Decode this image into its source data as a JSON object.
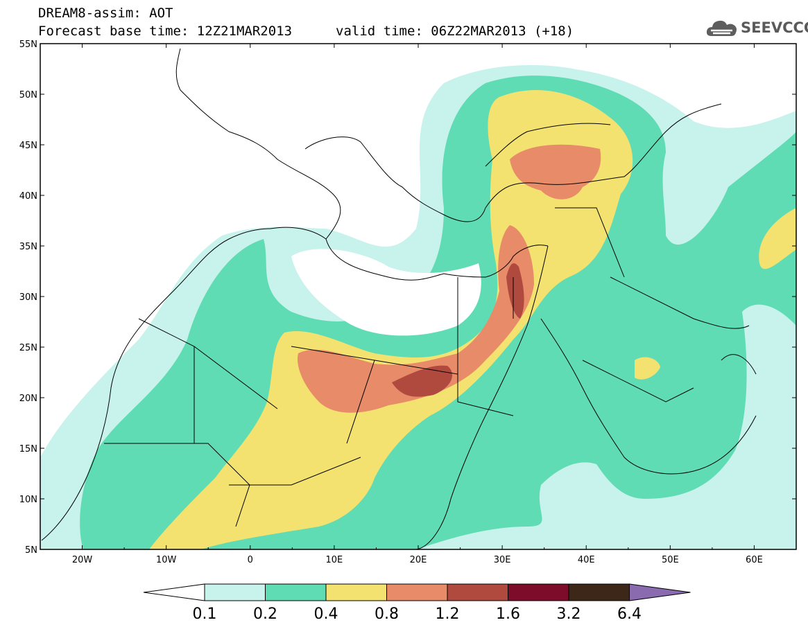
{
  "title": {
    "line1": "DREAM8-assim: AOT",
    "line2": "Forecast base time: 12Z21MAR2013",
    "valid": "valid time: 06Z22MAR2013 (+18)"
  },
  "logo": {
    "text": "SEEVCCC",
    "icon": "cloud-icon"
  },
  "chart_data": {
    "type": "heatmap",
    "variable": "AOT",
    "lon_range": [
      -25,
      65
    ],
    "lat_range": [
      5,
      55
    ],
    "xticks": [
      "20W",
      "10W",
      "0",
      "10E",
      "20E",
      "30E",
      "40E",
      "50E",
      "60E"
    ],
    "yticks": [
      "55N",
      "50N",
      "45N",
      "40N",
      "35N",
      "30N",
      "25N",
      "20N",
      "15N",
      "10N",
      "5N"
    ],
    "colorbar": {
      "levels": [
        "0.1",
        "0.2",
        "0.4",
        "0.8",
        "1.2",
        "1.6",
        "3.2",
        "6.4"
      ],
      "colors": [
        "#ffffff",
        "#c8f2ec",
        "#5fdcb4",
        "#f3e270",
        "#e88b68",
        "#b04a3f",
        "#7d0b2a",
        "#3d2718",
        "#8b6bb0"
      ]
    }
  }
}
